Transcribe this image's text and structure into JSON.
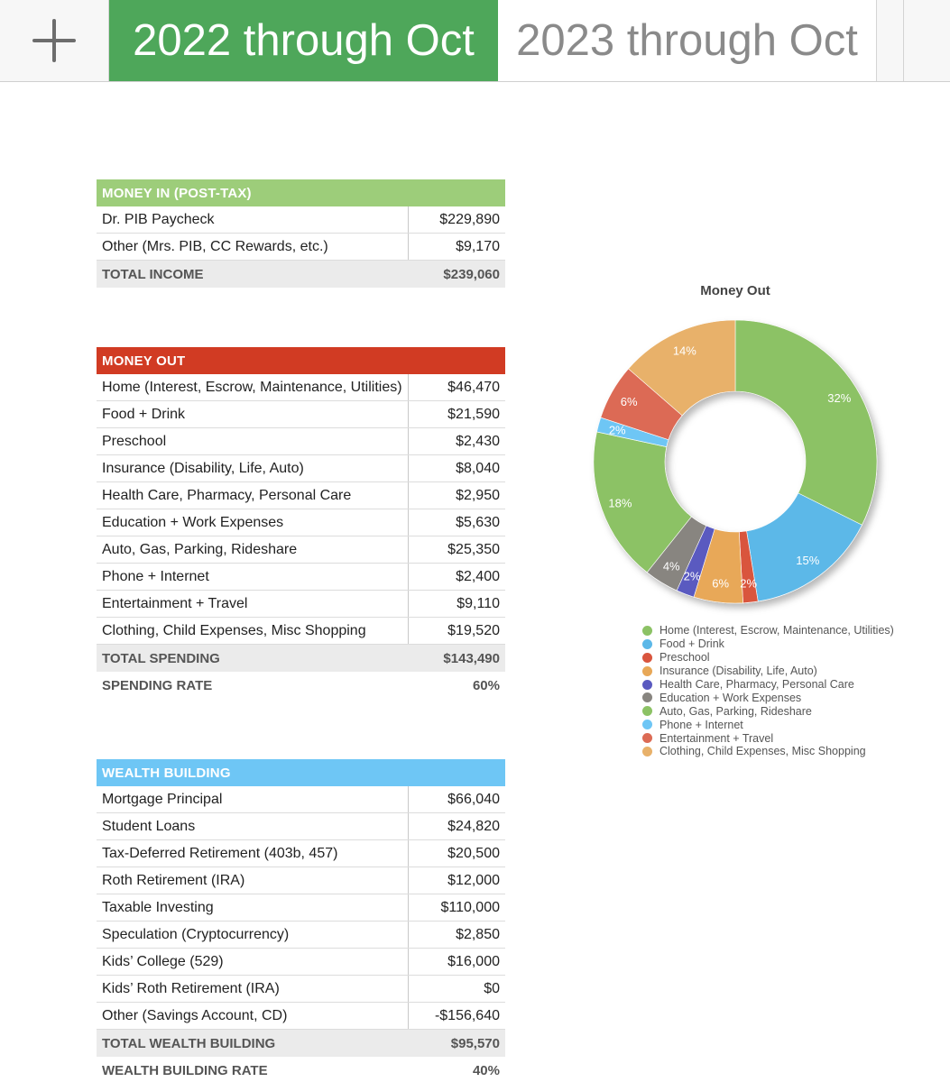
{
  "tabs": {
    "add_label": "+",
    "active": "2022 through Oct",
    "inactive": "2023 through Oct"
  },
  "money_in": {
    "header": "MONEY IN (POST-TAX)",
    "rows": [
      {
        "label": "Dr. PIB Paycheck",
        "value": "$229,890"
      },
      {
        "label": "Other (Mrs. PIB, CC Rewards, etc.)",
        "value": "$9,170"
      }
    ],
    "total_label": "TOTAL INCOME",
    "total_value": "$239,060"
  },
  "money_out": {
    "header": "MONEY OUT",
    "rows": [
      {
        "label": "Home (Interest, Escrow, Maintenance, Utilities)",
        "value": "$46,470"
      },
      {
        "label": "Food + Drink",
        "value": "$21,590"
      },
      {
        "label": "Preschool",
        "value": "$2,430"
      },
      {
        "label": "Insurance (Disability, Life, Auto)",
        "value": "$8,040"
      },
      {
        "label": "Health Care, Pharmacy, Personal Care",
        "value": "$2,950"
      },
      {
        "label": "Education + Work Expenses",
        "value": "$5,630"
      },
      {
        "label": "Auto, Gas, Parking, Rideshare",
        "value": "$25,350"
      },
      {
        "label": "Phone + Internet",
        "value": "$2,400"
      },
      {
        "label": "Entertainment + Travel",
        "value": "$9,110"
      },
      {
        "label": "Clothing, Child Expenses, Misc Shopping",
        "value": "$19,520"
      }
    ],
    "total_label": "TOTAL SPENDING",
    "total_value": "$143,490",
    "rate_label": "SPENDING RATE",
    "rate_value": "60%"
  },
  "wealth": {
    "header": "WEALTH BUILDING",
    "rows": [
      {
        "label": "Mortgage Principal",
        "value": "$66,040"
      },
      {
        "label": "Student Loans",
        "value": "$24,820"
      },
      {
        "label": "Tax-Deferred Retirement (403b, 457)",
        "value": "$20,500"
      },
      {
        "label": "Roth Retirement (IRA)",
        "value": "$12,000"
      },
      {
        "label": "Taxable Investing",
        "value": "$110,000"
      },
      {
        "label": "Speculation (Cryptocurrency)",
        "value": "$2,850"
      },
      {
        "label": "Kids’ College (529)",
        "value": "$16,000"
      },
      {
        "label": "Kids’ Roth Retirement (IRA)",
        "value": "$0"
      },
      {
        "label": "Other (Savings Account, CD)",
        "value": "-$156,640"
      }
    ],
    "total_label": "TOTAL WEALTH BUILDING",
    "total_value": "$95,570",
    "rate_label": "WEALTH BUILDING RATE",
    "rate_value": "40%"
  },
  "colors": {
    "tab_active": "#4ea75a",
    "money_in_header": "#9dcd7a",
    "money_out_header": "#d13b23",
    "wealth_header": "#6ec6f5"
  },
  "chart_data": {
    "type": "pie",
    "title": "Money Out",
    "legend_position": "bottom",
    "labels": [
      "Home (Interest, Escrow, Maintenance, Utilities)",
      "Food + Drink",
      "Preschool",
      "Insurance (Disability, Life, Auto)",
      "Health Care, Pharmacy, Personal Care",
      "Education + Work Expenses",
      "Auto, Gas, Parking, Rideshare",
      "Phone + Internet",
      "Entertainment + Travel",
      "Clothing, Child Expenses, Misc Shopping"
    ],
    "values": [
      46470,
      21590,
      2430,
      8040,
      2950,
      5630,
      25350,
      2400,
      9110,
      19520
    ],
    "percent_labels": [
      "32%",
      "15%",
      "2%",
      "6%",
      "2%",
      "4%",
      "18%",
      "2%",
      "6%",
      "14%"
    ],
    "colors": [
      "#8cc265",
      "#5cb8e8",
      "#d9553e",
      "#e8a858",
      "#5a5ac0",
      "#888580",
      "#8cc265",
      "#6ec6f5",
      "#dc6b55",
      "#e8b16a"
    ]
  }
}
